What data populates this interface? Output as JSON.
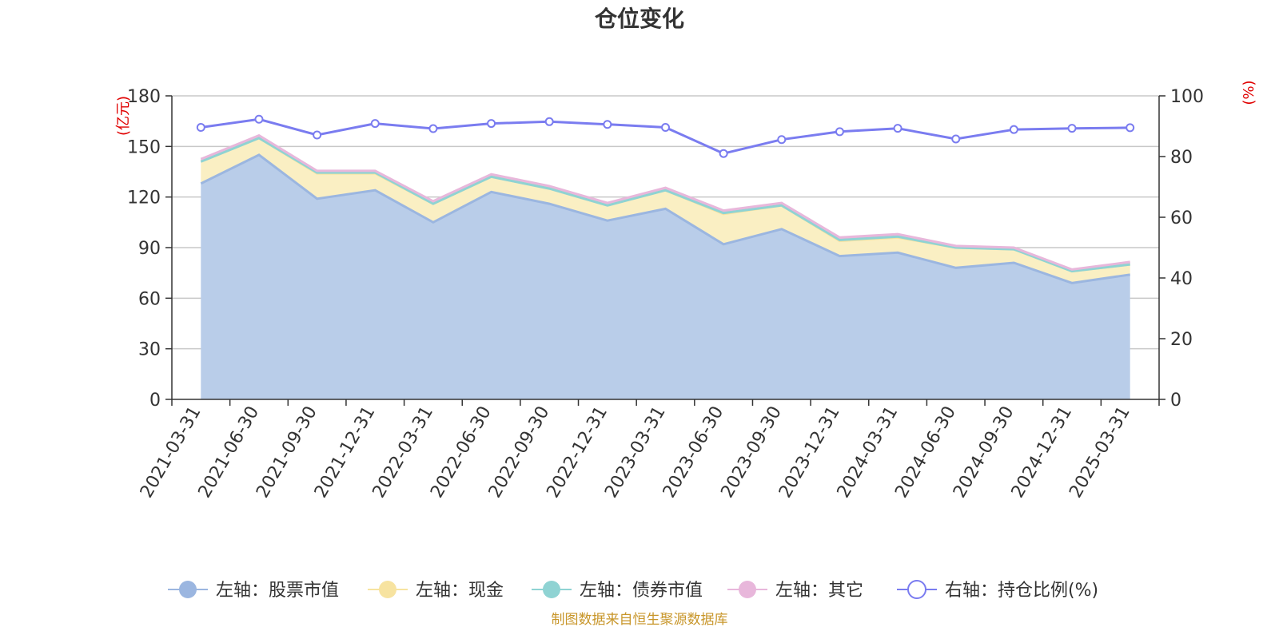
{
  "colors": {
    "stock": "#9bb6e0",
    "stock_fill": "#b9cde9",
    "cash": "#f7e3a0",
    "cash_fill": "#faefc3",
    "bond": "#8fd3d3",
    "other": "#e8b7db",
    "ratio": "#7a7cf0",
    "grid": "#c8c8c8",
    "axis": "#333333",
    "unit_red": "#e00000",
    "source": "#c8962a"
  },
  "chart_data": {
    "type": "area",
    "title": "仓位变化",
    "y_left_unit": "(亿元)",
    "y_right_unit": "(%)",
    "ylim_left": [
      0,
      180
    ],
    "ylim_right": [
      0,
      100
    ],
    "y_left_ticks": [
      "0",
      "30",
      "60",
      "90",
      "120",
      "150",
      "180"
    ],
    "y_right_ticks": [
      "0",
      "20",
      "40",
      "60",
      "80",
      "100"
    ],
    "x": [
      "2021-03-31",
      "2021-06-30",
      "2021-09-30",
      "2021-12-31",
      "2022-03-31",
      "2022-06-30",
      "2022-09-30",
      "2022-12-31",
      "2023-03-31",
      "2023-06-30",
      "2023-09-30",
      "2023-12-31",
      "2024-03-31",
      "2024-06-30",
      "2024-09-30",
      "2024-12-31",
      "2025-03-31"
    ],
    "grid": true,
    "legend_position": "bottom",
    "series": [
      {
        "name": "左轴：股票市值",
        "axis": "left",
        "stacked": true,
        "values": [
          128,
          145,
          119,
          124,
          105,
          123,
          116,
          106,
          113,
          92,
          101,
          85,
          87,
          78,
          81,
          69,
          74
        ]
      },
      {
        "name": "左轴：现金",
        "axis": "left",
        "stacked": true,
        "values": [
          13,
          10,
          15,
          10,
          11,
          9,
          9,
          9,
          11,
          18,
          14,
          9,
          9,
          12,
          8,
          7,
          6
        ]
      },
      {
        "name": "左轴：债券市值",
        "axis": "left",
        "stacked": true,
        "values": [
          0,
          0,
          0.5,
          0.5,
          0,
          0,
          0,
          0,
          0,
          0.5,
          0,
          0.5,
          0.5,
          0,
          0,
          0,
          0
        ]
      },
      {
        "name": "左轴：其它",
        "axis": "left",
        "stacked": true,
        "values": [
          1.5,
          1.5,
          1,
          1,
          1.5,
          1.5,
          1.5,
          1.5,
          1.5,
          1.5,
          1.5,
          1.5,
          1.5,
          1,
          1,
          1,
          1.5
        ]
      },
      {
        "name": "右轴：持仓比例(%)",
        "axis": "right",
        "stacked": false,
        "values": [
          89.6,
          92.3,
          87.1,
          90.9,
          89.2,
          90.9,
          91.5,
          90.6,
          89.6,
          81,
          85.6,
          88.2,
          89.3,
          85.8,
          88.9,
          89.3,
          89.5
        ]
      }
    ]
  },
  "source_text": "制图数据来自恒生聚源数据库"
}
